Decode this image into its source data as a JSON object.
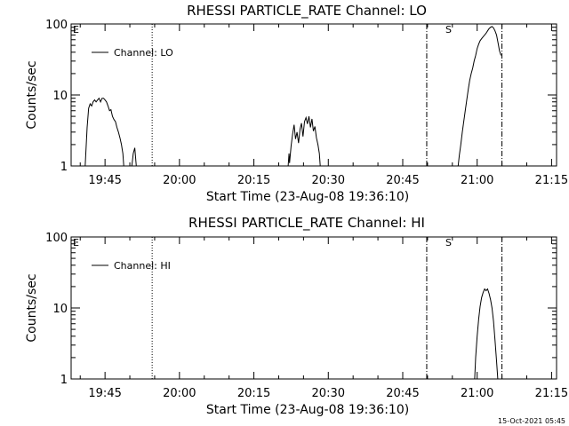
{
  "footer": {
    "timestamp": "15-Oct-2021 05:45"
  },
  "chart_data": [
    {
      "type": "line",
      "title": "RHESSI PARTICLE_RATE Channel: LO",
      "xlabel": "Start Time (23-Aug-08 19:36:10)",
      "ylabel": "Counts/sec",
      "yscale": "log",
      "ylim": [
        1,
        100
      ],
      "xlim": [
        19.6361,
        21.2667
      ],
      "x_unit": "hours (UT)",
      "x_ticks": [
        19.75,
        20.0,
        20.25,
        20.5,
        20.75,
        21.0,
        21.25
      ],
      "x_tick_labels": [
        "19:45",
        "20:00",
        "20:15",
        "20:30",
        "20:45",
        "21:00",
        "21:15"
      ],
      "y_ticks": [
        1,
        10,
        100
      ],
      "y_tick_labels": [
        "1",
        "10",
        "100"
      ],
      "legend": {
        "label": "Channel: LO",
        "placement": "top-left"
      },
      "markers": {
        "left_label": "E",
        "s_label": "S"
      },
      "vlines": [
        {
          "x": 19.9083,
          "style": "dotted"
        },
        {
          "x": 20.8306,
          "style": "dashdot"
        },
        {
          "x": 21.0833,
          "style": "dashdot"
        }
      ],
      "series": [
        {
          "name": "Channel: LO",
          "segments": [
            [
              [
                19.6833,
                1
              ],
              [
                19.69,
                3.5
              ],
              [
                19.695,
                6.5
              ],
              [
                19.7,
                7.5
              ],
              [
                19.705,
                7
              ],
              [
                19.71,
                8
              ],
              [
                19.715,
                8.5
              ],
              [
                19.72,
                8
              ],
              [
                19.725,
                8.5
              ],
              [
                19.73,
                9
              ],
              [
                19.735,
                8
              ],
              [
                19.74,
                9
              ],
              [
                19.745,
                9
              ],
              [
                19.75,
                8.5
              ],
              [
                19.755,
                8
              ],
              [
                19.76,
                7
              ],
              [
                19.765,
                6
              ],
              [
                19.77,
                6.2
              ],
              [
                19.775,
                5
              ],
              [
                19.78,
                4.5
              ],
              [
                19.785,
                4.2
              ],
              [
                19.79,
                3.5
              ],
              [
                19.795,
                3
              ],
              [
                19.8,
                2.5
              ],
              [
                19.805,
                2
              ],
              [
                19.81,
                1.5
              ],
              [
                19.813,
                1
              ]
            ],
            [
              [
                19.84,
                1
              ],
              [
                19.845,
                1.5
              ],
              [
                19.85,
                1.8
              ],
              [
                19.855,
                1
              ]
            ],
            [
              [
                20.365,
                1
              ],
              [
                20.368,
                1.5
              ],
              [
                20.37,
                1.1
              ],
              [
                20.375,
                1.9
              ],
              [
                20.38,
                2.8
              ],
              [
                20.385,
                3.8
              ],
              [
                20.39,
                2.4
              ],
              [
                20.395,
                3
              ],
              [
                20.4,
                2.1
              ],
              [
                20.405,
                3.3
              ],
              [
                20.41,
                4
              ],
              [
                20.415,
                2.6
              ],
              [
                20.42,
                4.2
              ],
              [
                20.425,
                4.8
              ],
              [
                20.43,
                3.9
              ],
              [
                20.435,
                5
              ],
              [
                20.44,
                3.5
              ],
              [
                20.445,
                4.6
              ],
              [
                20.45,
                3.1
              ],
              [
                20.455,
                3.6
              ],
              [
                20.46,
                2.5
              ],
              [
                20.465,
                2
              ],
              [
                20.47,
                1.5
              ],
              [
                20.473,
                1
              ]
            ],
            [
              [
                20.9361,
                1
              ],
              [
                20.94,
                1.4
              ],
              [
                20.945,
                2
              ],
              [
                20.95,
                3
              ],
              [
                20.955,
                4.2
              ],
              [
                20.96,
                6
              ],
              [
                20.965,
                8.5
              ],
              [
                20.97,
                12
              ],
              [
                20.975,
                16
              ],
              [
                20.98,
                20
              ],
              [
                20.985,
                24
              ],
              [
                20.99,
                30
              ],
              [
                20.995,
                36
              ],
              [
                21.0,
                45
              ],
              [
                21.005,
                52
              ],
              [
                21.01,
                58
              ],
              [
                21.015,
                62
              ],
              [
                21.02,
                66
              ],
              [
                21.025,
                70
              ],
              [
                21.03,
                74
              ],
              [
                21.035,
                80
              ],
              [
                21.04,
                86
              ],
              [
                21.045,
                90
              ],
              [
                21.05,
                92
              ],
              [
                21.055,
                88
              ],
              [
                21.06,
                80
              ],
              [
                21.065,
                70
              ],
              [
                21.07,
                55
              ],
              [
                21.075,
                42
              ],
              [
                21.08,
                36
              ]
            ]
          ]
        }
      ]
    },
    {
      "type": "line",
      "title": "RHESSI PARTICLE_RATE Channel: HI",
      "xlabel": "Start Time (23-Aug-08 19:36:10)",
      "ylabel": "Counts/sec",
      "yscale": "log",
      "ylim": [
        1,
        100
      ],
      "xlim": [
        19.6361,
        21.2667
      ],
      "x_unit": "hours (UT)",
      "x_ticks": [
        19.75,
        20.0,
        20.25,
        20.5,
        20.75,
        21.0,
        21.25
      ],
      "x_tick_labels": [
        "19:45",
        "20:00",
        "20:15",
        "20:30",
        "20:45",
        "21:00",
        "21:15"
      ],
      "y_ticks": [
        1,
        10,
        100
      ],
      "y_tick_labels": [
        "1",
        "10",
        "100"
      ],
      "legend": {
        "label": "Channel: HI",
        "placement": "top-left"
      },
      "markers": {
        "left_label": "E",
        "s_label": "S"
      },
      "vlines": [
        {
          "x": 19.9083,
          "style": "dotted"
        },
        {
          "x": 20.8306,
          "style": "dashdot"
        },
        {
          "x": 21.0833,
          "style": "dashdot"
        }
      ],
      "series": [
        {
          "name": "Channel: HI",
          "segments": [
            [
              [
                20.9917,
                1
              ],
              [
                20.995,
                2
              ],
              [
                21.0,
                4
              ],
              [
                21.005,
                7
              ],
              [
                21.01,
                10.5
              ],
              [
                21.015,
                14
              ],
              [
                21.02,
                16.5
              ],
              [
                21.025,
                18.5
              ],
              [
                21.03,
                17.5
              ],
              [
                21.035,
                18.5
              ],
              [
                21.04,
                16
              ],
              [
                21.045,
                13
              ],
              [
                21.05,
                10
              ],
              [
                21.055,
                6.5
              ],
              [
                21.06,
                3.5
              ],
              [
                21.065,
                1.8
              ],
              [
                21.0694,
                1
              ]
            ]
          ]
        }
      ]
    }
  ]
}
